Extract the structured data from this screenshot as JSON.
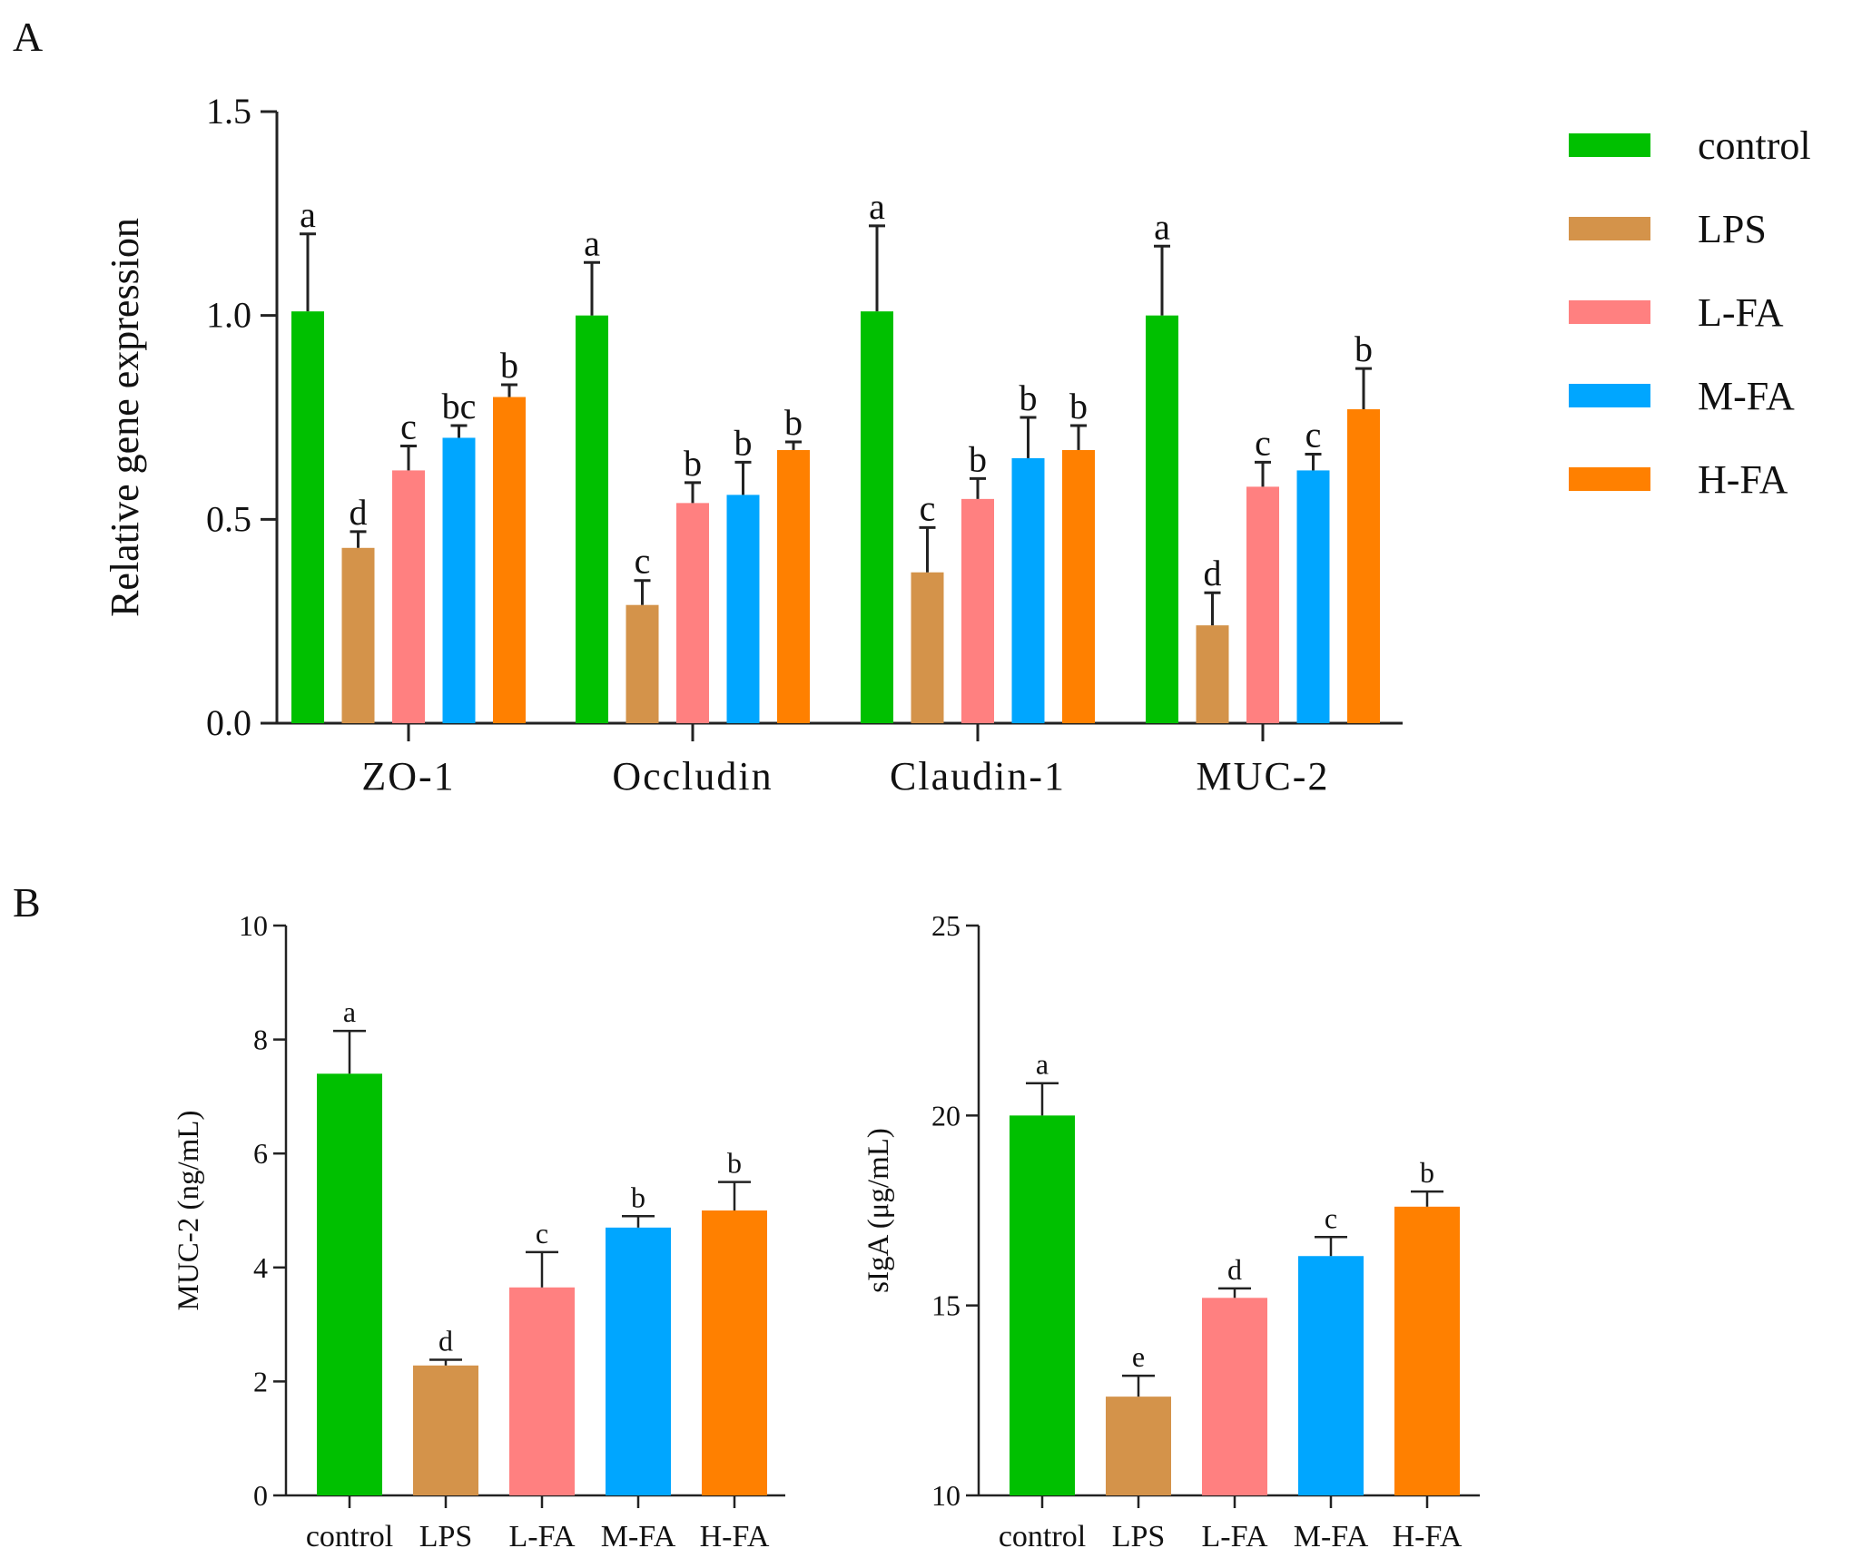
{
  "chart_data": [
    {
      "panel": "A",
      "type": "bar",
      "ylabel": "Relative gene expression",
      "ylim": [
        0,
        1.5
      ],
      "yticks": [
        "0.0",
        "0.5",
        "1.0",
        "1.5"
      ],
      "categories": [
        "ZO-1",
        "Occludin",
        "Claudin-1",
        "MUC-2"
      ],
      "legend_position": "right",
      "series": [
        {
          "name": "control",
          "color": "#00c000",
          "values": [
            1.01,
            1.0,
            1.01,
            1.0
          ],
          "errors": [
            0.19,
            0.13,
            0.21,
            0.17
          ],
          "letters": [
            "a",
            "a",
            "a",
            "a"
          ]
        },
        {
          "name": "LPS",
          "color": "#d4934a",
          "values": [
            0.43,
            0.29,
            0.37,
            0.24
          ],
          "errors": [
            0.04,
            0.06,
            0.11,
            0.08
          ],
          "letters": [
            "d",
            "c",
            "c",
            "d"
          ]
        },
        {
          "name": "L-FA",
          "color": "#ff8080",
          "values": [
            0.62,
            0.54,
            0.55,
            0.58
          ],
          "errors": [
            0.06,
            0.05,
            0.05,
            0.06
          ],
          "letters": [
            "c",
            "b",
            "b",
            "c"
          ]
        },
        {
          "name": "M-FA",
          "color": "#00a6ff",
          "values": [
            0.7,
            0.56,
            0.65,
            0.62
          ],
          "errors": [
            0.03,
            0.08,
            0.1,
            0.04
          ],
          "letters": [
            "bc",
            "b",
            "b",
            "c"
          ]
        },
        {
          "name": "H-FA",
          "color": "#ff8000",
          "values": [
            0.8,
            0.67,
            0.67,
            0.77
          ],
          "errors": [
            0.03,
            0.02,
            0.06,
            0.1
          ],
          "letters": [
            "b",
            "b",
            "b",
            "b"
          ]
        }
      ]
    },
    {
      "panel": "B",
      "type": "bar",
      "ylabel": "MUC-2 (ng/mL)",
      "ylim": [
        0,
        10
      ],
      "yticks": [
        "0",
        "2",
        "4",
        "6",
        "8",
        "10"
      ],
      "categories": [
        "control",
        "LPS",
        "L-FA",
        "M-FA",
        "H-FA"
      ],
      "colors": [
        "#00c000",
        "#d4934a",
        "#ff8080",
        "#00a6ff",
        "#ff8000"
      ],
      "values": [
        7.4,
        2.28,
        3.65,
        4.7,
        5.0
      ],
      "errors": [
        0.75,
        0.1,
        0.62,
        0.2,
        0.5
      ],
      "letters": [
        "a",
        "d",
        "c",
        "b",
        "b"
      ]
    },
    {
      "panel": "B",
      "type": "bar",
      "ylabel": "sIgA (μg/mL)",
      "ylim": [
        10,
        25
      ],
      "yticks": [
        "10",
        "15",
        "20",
        "25"
      ],
      "categories": [
        "control",
        "LPS",
        "L-FA",
        "M-FA",
        "H-FA"
      ],
      "colors": [
        "#00c000",
        "#d4934a",
        "#ff8080",
        "#00a6ff",
        "#ff8000"
      ],
      "values": [
        20.0,
        12.6,
        15.2,
        16.3,
        17.6
      ],
      "errors": [
        0.85,
        0.55,
        0.25,
        0.5,
        0.4
      ],
      "letters": [
        "a",
        "e",
        "d",
        "c",
        "b"
      ]
    }
  ],
  "panel_labels": {
    "a": "A",
    "b": "B"
  }
}
